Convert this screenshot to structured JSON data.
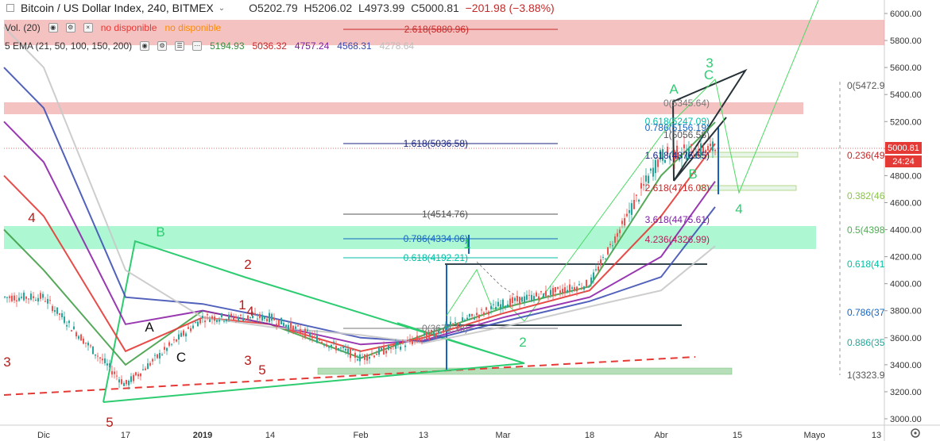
{
  "header": {
    "title": "Bitcoin / US Dollar Index, 240, BITMEX",
    "open": "O5202.79",
    "high": "H5206.02",
    "low": "L4973.99",
    "close": "C5000.81",
    "change": "−201.98 (−3.88%)"
  },
  "volume_row": {
    "label": "Vol. (20)",
    "na1": "no disponible",
    "na2": "no disponible"
  },
  "ema_row": {
    "label": "5 EMA (21, 50, 100, 150, 200)",
    "values": [
      "5194.93",
      "5036.32",
      "4757.24",
      "4568.31",
      "4278.64"
    ],
    "colors": [
      "#388e3c",
      "#c62828",
      "#7b1fa2",
      "#3949ab",
      "#bdbdbd"
    ]
  },
  "price_axis": {
    "ticks": [
      "6000.00",
      "5800.00",
      "5600.00",
      "5400.00",
      "5200.00",
      "5000.00",
      "4800.00",
      "4600.00",
      "4400.00",
      "4200.00",
      "4000.00",
      "3800.00",
      "3600.00",
      "3400.00",
      "3200.00",
      "3000.00"
    ],
    "last_price": "5000.81",
    "countdown": "24:24"
  },
  "time_axis": {
    "ticks": [
      "Dic",
      "17",
      "2019",
      "14",
      "Feb",
      "13",
      "Mar",
      "18",
      "Abr",
      "15",
      "Mayo",
      "13"
    ]
  },
  "fib_left": {
    "items": [
      {
        "label": "2.618(5880.96)",
        "color": "#c62828"
      },
      {
        "label": "1.618(5036.58)",
        "color": "#1a237e"
      },
      {
        "label": "1(4514.76)",
        "color": "#555555"
      },
      {
        "label": "0.786(4334.06)",
        "color": "#1565c0"
      },
      {
        "label": "0.618(4192.21)",
        "color": "#00bfa5"
      },
      {
        "label": "0(3672.18)",
        "color": "#777777"
      }
    ]
  },
  "fib_right": {
    "items": [
      {
        "label": "0(5345.64)",
        "color": "#777777"
      },
      {
        "label": "0.618(5247.09)",
        "color": "#00bfa5"
      },
      {
        "label": "0.786(5156.19)",
        "color": "#1565c0"
      },
      {
        "label": "1(5056.58)",
        "color": "#555555"
      },
      {
        "label": "1.618(4876.55)",
        "color": "#1a237e"
      },
      {
        "label": "2.618(4716.08)",
        "color": "#c62828"
      },
      {
        "label": "3.618(4475.61)",
        "color": "#7b1fa2"
      },
      {
        "label": "4.236(4326.99)",
        "color": "#c2185b"
      }
    ]
  },
  "fib_far": {
    "items": [
      {
        "label": "0(5472.9",
        "color": "#555555"
      },
      {
        "label": "0.236(49",
        "color": "#c62828"
      },
      {
        "label": "0.382(46",
        "color": "#8bc34a"
      },
      {
        "label": "0.5(4398",
        "color": "#4caf50"
      },
      {
        "label": "0.618(41",
        "color": "#00bfa5"
      },
      {
        "label": "0.786(37",
        "color": "#1565c0"
      },
      {
        "label": "0.886(35",
        "color": "#26a69a"
      },
      {
        "label": "1(3323.9",
        "color": "#555555"
      }
    ]
  },
  "wave_labels": {
    "red": [
      "4",
      "3",
      "5",
      "2",
      "1",
      "4",
      "3",
      "5"
    ],
    "black": [
      "A",
      "C"
    ],
    "green": [
      "B",
      "1",
      "2",
      "A",
      "B",
      "3",
      "C",
      "4"
    ]
  },
  "chart_data": {
    "type": "line",
    "title": "Bitcoin / US Dollar Index, 240, BITMEX",
    "ylim": [
      3000,
      6100
    ],
    "x": [
      "Dic",
      "17",
      "2019",
      "14",
      "Feb",
      "13",
      "Mar",
      "18",
      "Abr",
      "15"
    ],
    "series": [
      {
        "name": "price",
        "values": [
          3900,
          3250,
          3750,
          3750,
          3450,
          3600,
          3850,
          4000,
          4950,
          5000
        ]
      },
      {
        "name": "EMA 21",
        "values": [
          4100,
          3400,
          3800,
          3700,
          3450,
          3620,
          3820,
          3980,
          4800,
          5194.93
        ]
      },
      {
        "name": "EMA 50",
        "values": [
          4500,
          3500,
          3750,
          3700,
          3500,
          3600,
          3780,
          3950,
          4500,
          5036.32
        ]
      },
      {
        "name": "EMA 100",
        "values": [
          4900,
          3700,
          3800,
          3700,
          3550,
          3580,
          3750,
          3900,
          4200,
          4757.24
        ]
      },
      {
        "name": "EMA 150",
        "values": [
          5300,
          3900,
          3850,
          3750,
          3600,
          3570,
          3720,
          3870,
          4050,
          4568.31
        ]
      },
      {
        "name": "EMA 200",
        "values": [
          5600,
          4100,
          3750,
          3680,
          3620,
          3560,
          3680,
          3830,
          3950,
          4278.64
        ]
      }
    ],
    "grid": false
  }
}
